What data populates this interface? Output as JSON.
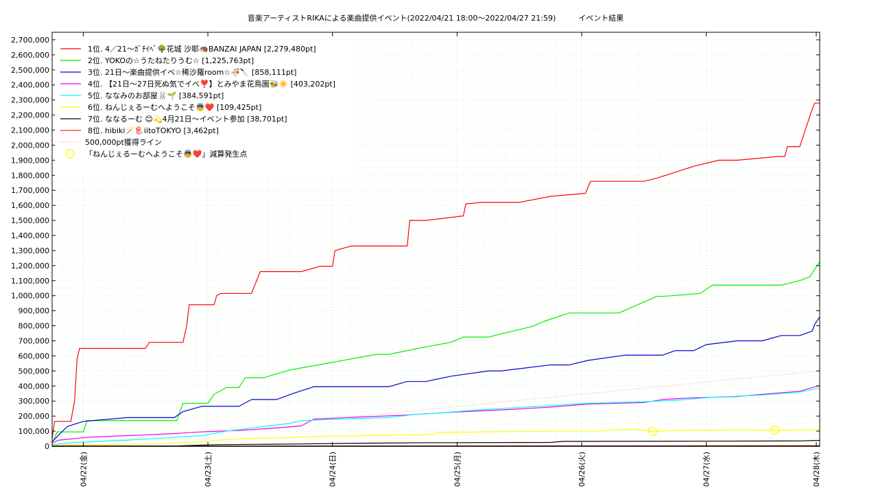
{
  "chart_data": {
    "type": "line",
    "title": "音楽アーティストRIKAによる楽曲提供イベント(2022/04/21 18:00～2022/04/27 21:59)　　　イベント結果",
    "xlabel": "",
    "ylabel": "",
    "xlim": [
      0,
      6.16
    ],
    "ylim": [
      0,
      2750000
    ],
    "grid": true,
    "legend_position": "top-left",
    "x_tick_labels": [
      {
        "x": 0.25,
        "label": "04/22(金)"
      },
      {
        "x": 1.25,
        "label": "04/23(土)"
      },
      {
        "x": 2.25,
        "label": "04/24(日)"
      },
      {
        "x": 3.25,
        "label": "04/25(月)"
      },
      {
        "x": 4.25,
        "label": "04/26(火)"
      },
      {
        "x": 5.25,
        "label": "04/27(水)"
      },
      {
        "x": 6.25,
        "label": "04/28(木)"
      }
    ],
    "y_ticks": [
      0,
      100000,
      200000,
      300000,
      400000,
      500000,
      600000,
      700000,
      800000,
      900000,
      1000000,
      1100000,
      1200000,
      1300000,
      1400000,
      1500000,
      1600000,
      1700000,
      1800000,
      1900000,
      2000000,
      2100000,
      2200000,
      2300000,
      2400000,
      2500000,
      2600000,
      2700000
    ],
    "y_tick_labels": [
      "0",
      "100,000",
      "200,000",
      "300,000",
      "400,000",
      "500,000",
      "600,000",
      "700,000",
      "800,000",
      "900,000",
      "1,000,000",
      "1,100,000",
      "1,200,000",
      "1,300,000",
      "1,400,000",
      "1,500,000",
      "1,600,000",
      "1,700,000",
      "1,800,000",
      "1,900,000",
      "2,000,000",
      "2,100,000",
      "2,200,000",
      "2,300,000",
      "2,400,000",
      "2,500,000",
      "2,600,000",
      "2,700,000"
    ],
    "series": [
      {
        "name": "1位. 4／21～ｶﾞﾁｲﾍﾞ🌳花城 沙耶🦔BANZAI JAPAN [2,279,480pt]",
        "color": "#ff0000",
        "x": [
          0,
          0.02,
          0.15,
          0.18,
          0.2,
          0.22,
          0.24,
          0.75,
          0.78,
          1.05,
          1.08,
          1.1,
          1.3,
          1.32,
          1.35,
          1.6,
          1.67,
          2.0,
          2.15,
          2.25,
          2.27,
          2.4,
          2.85,
          2.87,
          3.0,
          3.3,
          3.32,
          3.45,
          3.75,
          4.0,
          4.28,
          4.32,
          4.75,
          4.85,
          5.15,
          5.35,
          5.5,
          5.83,
          5.88,
          5.9,
          6.0,
          6.1,
          6.12,
          6.16
        ],
        "y": [
          50000,
          165000,
          165000,
          300000,
          580000,
          650000,
          650000,
          650000,
          690000,
          690000,
          800000,
          940000,
          940000,
          1000000,
          1015000,
          1015000,
          1160000,
          1160000,
          1195000,
          1195000,
          1300000,
          1330000,
          1330000,
          1500000,
          1500000,
          1530000,
          1610000,
          1620000,
          1620000,
          1660000,
          1680000,
          1760000,
          1760000,
          1780000,
          1860000,
          1900000,
          1900000,
          1925000,
          1925000,
          1990000,
          1990000,
          2240000,
          2279480,
          2279480
        ]
      },
      {
        "name": "2位. YOKOの☆うたねたりうむ☆ [1,225,763pt]",
        "color": "#00ee00",
        "x": [
          0,
          0.04,
          0.25,
          0.28,
          1.0,
          1.05,
          1.2,
          1.25,
          1.3,
          1.4,
          1.5,
          1.55,
          1.7,
          1.9,
          2.0,
          2.6,
          2.7,
          3.0,
          3.2,
          3.3,
          3.5,
          3.85,
          3.95,
          4.15,
          4.3,
          4.55,
          4.85,
          4.9,
          5.2,
          5.3,
          5.55,
          5.85,
          6.0,
          6.08,
          6.16
        ],
        "y": [
          20000,
          95000,
          95000,
          170000,
          170000,
          285000,
          285000,
          285000,
          345000,
          390000,
          390000,
          455000,
          455000,
          505000,
          520000,
          610000,
          610000,
          660000,
          690000,
          725000,
          725000,
          795000,
          830000,
          885000,
          885000,
          885000,
          995000,
          995000,
          1015000,
          1070000,
          1070000,
          1070000,
          1100000,
          1125000,
          1225763
        ]
      },
      {
        "name": "3位. 21日～楽曲提供イベ☆稀沙羅room☆🍜🔪 [858,111pt]",
        "color": "#0000cc",
        "x": [
          0,
          0.12,
          0.25,
          0.6,
          0.98,
          1.05,
          1.2,
          1.5,
          1.6,
          1.8,
          1.95,
          2.1,
          2.5,
          2.7,
          2.85,
          3.0,
          3.2,
          3.5,
          3.6,
          4.0,
          4.15,
          4.3,
          4.6,
          4.9,
          5.0,
          5.15,
          5.25,
          5.5,
          5.7,
          5.85,
          6.0,
          6.1,
          6.12,
          6.16
        ],
        "y": [
          30000,
          130000,
          165000,
          190000,
          190000,
          230000,
          265000,
          265000,
          310000,
          310000,
          355000,
          395000,
          395000,
          395000,
          430000,
          430000,
          465000,
          500000,
          500000,
          540000,
          540000,
          570000,
          605000,
          605000,
          635000,
          635000,
          675000,
          700000,
          700000,
          735000,
          735000,
          765000,
          810000,
          858111
        ]
      },
      {
        "name": "4位. 【21日～27日死ぬ気でイベ❣️】とみやま花鳥園🐝☀️ [403,202pt]",
        "color": "#ee00ee",
        "x": [
          0,
          0.05,
          0.3,
          0.6,
          0.75,
          1.0,
          1.2,
          1.5,
          1.7,
          2.0,
          2.1,
          2.5,
          2.8,
          3.0,
          3.2,
          3.7,
          4.0,
          4.3,
          4.75,
          4.9,
          5.1,
          5.5,
          5.7,
          6.0,
          6.16
        ],
        "y": [
          20000,
          40000,
          60000,
          70000,
          75000,
          85000,
          95000,
          105000,
          115000,
          135000,
          180000,
          195000,
          205000,
          215000,
          225000,
          245000,
          260000,
          280000,
          290000,
          310000,
          320000,
          330000,
          345000,
          365000,
          403202
        ]
      },
      {
        "name": "5位. ななみのお部屋🐰🌱 [384,591pt]",
        "color": "#00ffff",
        "x": [
          0,
          0.1,
          0.3,
          0.6,
          0.9,
          1.2,
          1.4,
          1.7,
          1.9,
          2.0,
          2.3,
          2.7,
          2.9,
          3.1,
          3.4,
          3.6,
          3.8,
          4.1,
          4.3,
          4.75,
          5.0,
          5.3,
          5.7,
          6.0,
          6.16
        ],
        "y": [
          10000,
          20000,
          30000,
          40000,
          55000,
          70000,
          100000,
          130000,
          150000,
          170000,
          180000,
          190000,
          210000,
          220000,
          240000,
          250000,
          260000,
          275000,
          285000,
          295000,
          305000,
          325000,
          340000,
          360000,
          384591
        ]
      },
      {
        "name": "6位. ねんじぇるーむへようこそ👼❤️ [109,425pt]",
        "color": "#ffff00",
        "x": [
          0,
          0.3,
          0.8,
          1.2,
          1.5,
          1.8,
          2.0,
          2.1,
          2.5,
          3.0,
          3.1,
          3.5,
          4.0,
          4.4,
          4.5,
          4.7,
          4.82,
          5.0,
          5.5,
          5.9,
          6.0,
          6.16
        ],
        "y": [
          5000,
          10000,
          15000,
          30000,
          50000,
          55000,
          60000,
          65000,
          70000,
          75000,
          90000,
          95000,
          100000,
          100000,
          110000,
          112000,
          98000,
          105000,
          108000,
          106000,
          109000,
          109425
        ]
      },
      {
        "name": "7位. ななるーむ 😊💫4月21日～イベント参加 [38,701pt]",
        "color": "#000000",
        "x": [
          0,
          1.0,
          1.3,
          2.0,
          2.5,
          3.0,
          4.0,
          4.1,
          5.0,
          6.0,
          6.16
        ],
        "y": [
          0,
          2000,
          10000,
          15000,
          20000,
          23000,
          25000,
          32000,
          33000,
          35000,
          38701
        ]
      },
      {
        "name": "8位. hibiki🪄🪼iitoTOKYO [3,462pt]",
        "color": "#ff3300",
        "x": [
          0,
          6.16
        ],
        "y": [
          0,
          3462
        ]
      },
      {
        "name": "500,000pt獲得ライン",
        "color": "#ff8888",
        "style": "dotted",
        "x": [
          0,
          6.16
        ],
        "y": [
          0,
          500000
        ]
      }
    ],
    "markers": {
      "name": "「ねんじぇるーむへようこそ👼❤️」減算発生点",
      "color": "#ffff00",
      "points": [
        {
          "x": 4.82,
          "y": 98000
        },
        {
          "x": 5.8,
          "y": 108000
        }
      ]
    }
  }
}
